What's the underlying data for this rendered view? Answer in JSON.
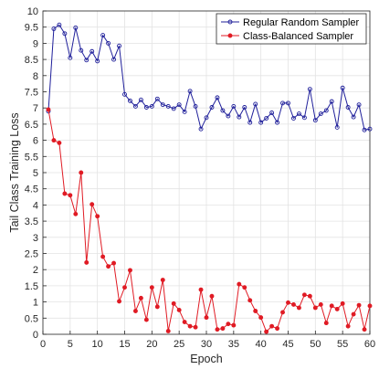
{
  "chart_data": {
    "type": "line",
    "title": "",
    "xlabel": "Epoch",
    "ylabel": "Tail Class Training Loss",
    "xlim": [
      0,
      60
    ],
    "ylim": [
      0,
      10
    ],
    "x_ticks": [
      0,
      5,
      10,
      15,
      20,
      25,
      30,
      35,
      40,
      45,
      50,
      55,
      60
    ],
    "y_ticks": [
      0,
      0.5,
      1,
      1.5,
      2,
      2.5,
      3,
      3.5,
      4,
      4.5,
      5,
      5.5,
      6,
      6.5,
      7,
      7.5,
      8,
      8.5,
      9,
      9.5,
      10
    ],
    "grid": true,
    "legend_position": "top-right",
    "marker": "circle",
    "series": [
      {
        "name": "Regular Random Sampler",
        "color": "#1f1f9a",
        "x": [
          1,
          2,
          3,
          4,
          5,
          6,
          7,
          8,
          9,
          10,
          11,
          12,
          13,
          14,
          15,
          16,
          17,
          18,
          19,
          20,
          21,
          22,
          23,
          24,
          25,
          26,
          27,
          28,
          29,
          30,
          31,
          32,
          33,
          34,
          35,
          36,
          37,
          38,
          39,
          40,
          41,
          42,
          43,
          44,
          45,
          46,
          47,
          48,
          49,
          50,
          51,
          52,
          53,
          54,
          55,
          56,
          57,
          58,
          59,
          60
        ],
        "values": [
          6.9,
          9.45,
          9.57,
          9.3,
          8.55,
          9.48,
          8.78,
          8.48,
          8.75,
          8.45,
          9.25,
          9.0,
          8.5,
          8.92,
          7.42,
          7.22,
          7.05,
          7.25,
          7.02,
          7.05,
          7.28,
          7.1,
          7.05,
          6.98,
          7.1,
          6.88,
          7.52,
          7.05,
          6.35,
          6.7,
          7.02,
          7.32,
          6.92,
          6.75,
          7.05,
          6.72,
          7.02,
          6.55,
          7.12,
          6.55,
          6.68,
          6.85,
          6.55,
          7.15,
          7.15,
          6.68,
          6.82,
          6.7,
          7.58,
          6.62,
          6.82,
          6.92,
          7.2,
          6.4,
          7.62,
          7.02,
          6.72,
          7.1,
          6.32,
          6.35
        ]
      },
      {
        "name": "Class-Balanced Sampler",
        "color": "#e01b24",
        "x": [
          1,
          2,
          3,
          4,
          5,
          6,
          7,
          8,
          9,
          10,
          11,
          12,
          13,
          14,
          15,
          16,
          17,
          18,
          19,
          20,
          21,
          22,
          23,
          24,
          25,
          26,
          27,
          28,
          29,
          30,
          31,
          32,
          33,
          34,
          35,
          36,
          37,
          38,
          39,
          40,
          41,
          42,
          43,
          44,
          45,
          46,
          47,
          48,
          49,
          50,
          51,
          52,
          53,
          54,
          55,
          56,
          57,
          58,
          59,
          60
        ],
        "values": [
          6.95,
          6.0,
          5.92,
          4.35,
          4.3,
          3.72,
          5.0,
          2.22,
          4.02,
          3.65,
          2.4,
          2.1,
          2.2,
          1.02,
          1.45,
          1.98,
          0.72,
          1.12,
          0.45,
          1.45,
          0.85,
          1.68,
          0.1,
          0.95,
          0.75,
          0.38,
          0.25,
          0.22,
          1.38,
          0.52,
          1.18,
          0.15,
          0.18,
          0.32,
          0.28,
          1.55,
          1.45,
          1.05,
          0.72,
          0.52,
          0.08,
          0.25,
          0.18,
          0.68,
          0.98,
          0.92,
          0.82,
          1.22,
          1.18,
          0.82,
          0.92,
          0.35,
          0.88,
          0.78,
          0.95,
          0.25,
          0.62,
          0.9,
          0.15,
          0.88
        ]
      }
    ]
  }
}
